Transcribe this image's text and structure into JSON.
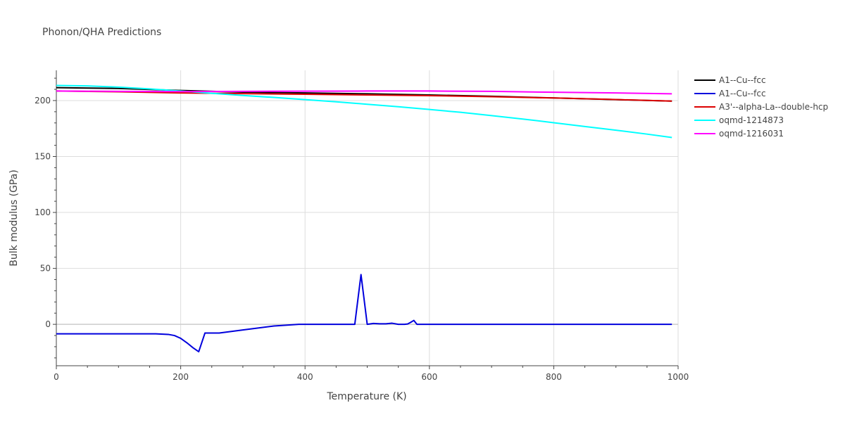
{
  "chart_data": {
    "type": "line",
    "title": "Phonon/QHA Predictions",
    "xlabel": "Temperature (K)",
    "ylabel": "Bulk modulus (GPa)",
    "xlim": [
      0,
      1000
    ],
    "ylim": [
      -37,
      227
    ],
    "xticks": [
      0,
      200,
      400,
      600,
      800,
      1000
    ],
    "yticks": [
      0,
      50,
      100,
      150,
      200
    ],
    "grid": true,
    "legend_position": "top-right",
    "series": [
      {
        "name": "A1--Cu--fcc",
        "color": "#000000",
        "x": [
          0,
          100,
          200,
          300,
          400,
          500,
          600,
          700,
          800,
          900,
          990
        ],
        "y": [
          211.5,
          210.8,
          209.0,
          207.5,
          206.8,
          206.0,
          205.0,
          203.8,
          202.3,
          200.8,
          199.5
        ]
      },
      {
        "name": "A1--Cu--fcc",
        "color": "#0000dd",
        "x": [
          0,
          50,
          100,
          160,
          180,
          190,
          200,
          210,
          220,
          229,
          239,
          250,
          262,
          300,
          350,
          390,
          420,
          450,
          480,
          490,
          500,
          510,
          520,
          530,
          540,
          550,
          560,
          565,
          570,
          575,
          580,
          600,
          700,
          800,
          900,
          990
        ],
        "y": [
          -8.5,
          -8.5,
          -8.5,
          -8.5,
          -9.0,
          -10.0,
          -12.5,
          -16.5,
          -21.0,
          -24.5,
          -7.8,
          -7.8,
          -7.8,
          -5.0,
          -1.5,
          0,
          0,
          0,
          0,
          44.5,
          0,
          0.8,
          0.5,
          0.5,
          1.0,
          0,
          0,
          0.3,
          1.8,
          3.5,
          0,
          0,
          0,
          0,
          0,
          0
        ]
      },
      {
        "name": "A3'--alpha-La--double-hcp",
        "color": "#dd0000",
        "x": [
          0,
          100,
          200,
          300,
          400,
          500,
          600,
          700,
          800,
          900,
          990
        ],
        "y": [
          208.5,
          207.8,
          206.8,
          206.2,
          205.6,
          205.0,
          204.4,
          203.4,
          202.3,
          200.9,
          199.5
        ]
      },
      {
        "name": "oqmd-1214873",
        "color": "#00ffff",
        "x": [
          0,
          50,
          100,
          150,
          200,
          250,
          300,
          350,
          400,
          450,
          500,
          550,
          600,
          650,
          700,
          750,
          800,
          850,
          900,
          950,
          990
        ],
        "y": [
          213.5,
          213.1,
          212.0,
          210.4,
          208.5,
          206.5,
          204.5,
          202.8,
          200.8,
          198.9,
          196.7,
          194.5,
          192.0,
          189.5,
          186.5,
          183.5,
          180.2,
          176.8,
          173.5,
          170.0,
          167.0
        ]
      },
      {
        "name": "oqmd-1216031",
        "color": "#ff00ff",
        "x": [
          0,
          100,
          200,
          300,
          400,
          500,
          600,
          700,
          800,
          900,
          990
        ],
        "y": [
          208.5,
          208.2,
          208.0,
          208.2,
          208.4,
          208.5,
          208.5,
          208.2,
          207.4,
          206.8,
          206.0
        ]
      }
    ]
  }
}
